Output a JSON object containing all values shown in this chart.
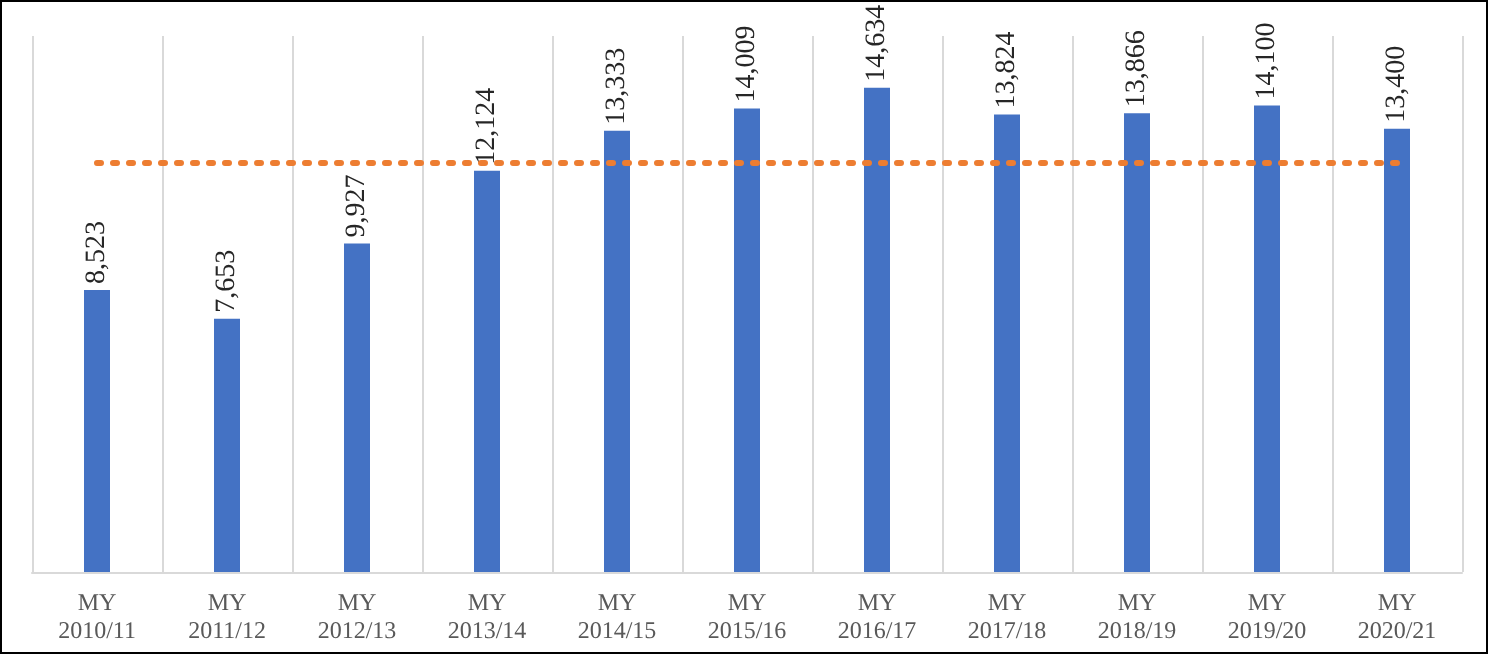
{
  "chart_data": {
    "type": "bar",
    "categories": [
      "MY\n2010/11",
      "MY\n2011/12",
      "MY\n2012/13",
      "MY\n2013/14",
      "MY\n2014/15",
      "MY\n2015/16",
      "MY\n2016/17",
      "MY\n2017/18",
      "MY\n2018/19",
      "MY\n2019/20",
      "MY\n2020/21"
    ],
    "values": [
      8523,
      7653,
      9927,
      12124,
      13333,
      14009,
      14634,
      13824,
      13866,
      14100,
      13400
    ],
    "value_labels": [
      "8,523",
      "7,653",
      "9,927",
      "12,124",
      "13,333",
      "14,009",
      "14,634",
      "13,824",
      "13,866",
      "14,100",
      "13,400"
    ],
    "color": "#4472c4",
    "ylim": [
      0,
      16200
    ],
    "tick_labels": "x",
    "grid": "x",
    "ref_lines": [
      {
        "axis": "y",
        "value": 12400,
        "label": null,
        "color": "#ed7d31",
        "line_style": "dotted"
      }
    ]
  }
}
